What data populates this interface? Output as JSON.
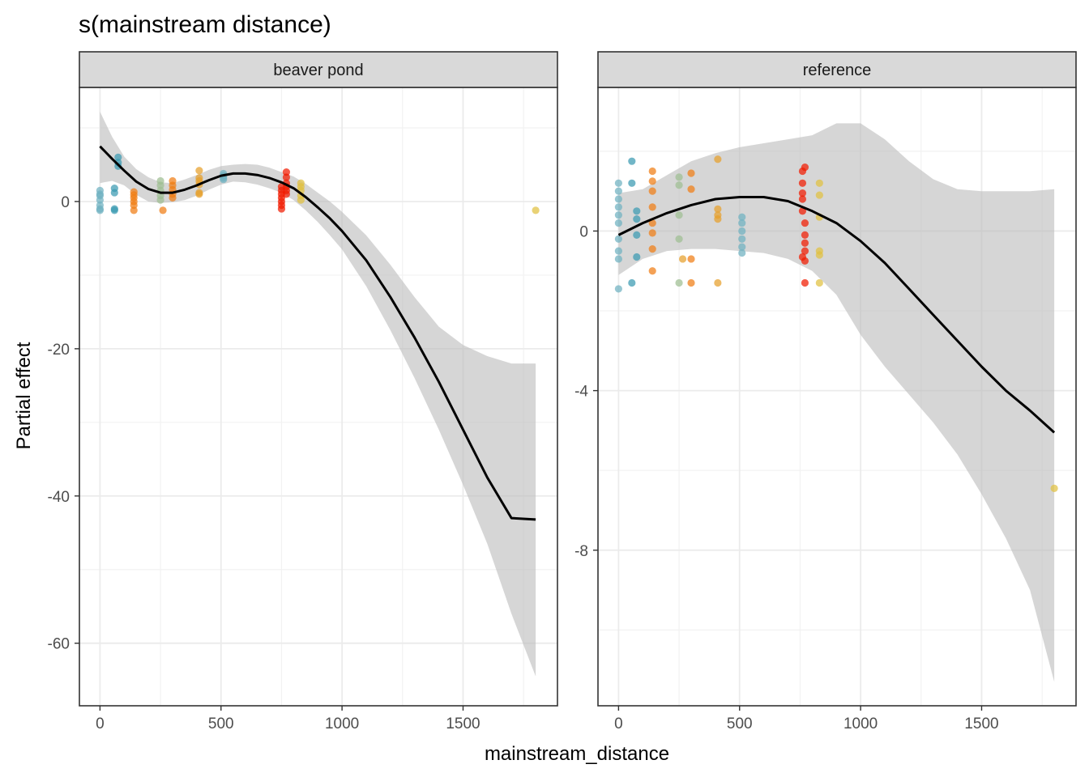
{
  "chart_data": {
    "type": "scatter",
    "title": "s(mainstream distance)",
    "xlabel": "mainstream_distance",
    "ylabel": "Partial effect",
    "grid": true,
    "palette": [
      "#6fb2c1",
      "#3a9ab2",
      "#9ebe91",
      "#e6a02b",
      "#f07d14",
      "#e0c040",
      "#f11b00"
    ],
    "panels": [
      {
        "strip": "beaver pond",
        "xlim": [
          -85,
          1890
        ],
        "ylim": [
          -68.5,
          15.5
        ],
        "xticks": [
          0,
          500,
          1000,
          1500
        ],
        "xtick_labels": [
          "0",
          "500",
          "1000",
          "1500"
        ],
        "yticks": [
          0,
          -20,
          -40,
          -60
        ],
        "ytick_labels": [
          "0",
          "-20",
          "-40",
          "-60"
        ],
        "curve": {
          "x": [
            0,
            50,
            100,
            150,
            200,
            250,
            300,
            350,
            400,
            450,
            500,
            550,
            600,
            650,
            700,
            750,
            800,
            850,
            900,
            950,
            1000,
            1100,
            1200,
            1300,
            1400,
            1500,
            1600,
            1700,
            1800
          ],
          "y": [
            7.5,
            5.8,
            4.2,
            2.7,
            1.7,
            1.2,
            1.2,
            1.6,
            2.2,
            2.9,
            3.5,
            3.8,
            3.8,
            3.6,
            3.2,
            2.6,
            1.8,
            0.6,
            -0.8,
            -2.3,
            -4.0,
            -8.0,
            -13.0,
            -18.5,
            -24.5,
            -31.0,
            -37.5,
            -43.0,
            -43.2
          ],
          "lower": [
            2.5,
            2.8,
            2.2,
            0.9,
            0.0,
            -0.2,
            -0.1,
            0.2,
            0.8,
            1.6,
            2.3,
            2.7,
            2.6,
            2.3,
            1.8,
            1.2,
            0.2,
            -1.2,
            -2.8,
            -4.6,
            -6.5,
            -11.5,
            -17.5,
            -24.0,
            -31.0,
            -38.5,
            -46.5,
            -56.0,
            -64.5
          ],
          "upper": [
            12.2,
            8.8,
            6.1,
            4.4,
            3.3,
            2.6,
            2.5,
            3.0,
            3.6,
            4.3,
            4.8,
            5.0,
            5.1,
            5.0,
            4.6,
            4.0,
            3.4,
            2.4,
            1.2,
            0.0,
            -1.4,
            -4.6,
            -8.6,
            -13.0,
            -17.0,
            -19.5,
            -21.0,
            -22.0,
            -22.0
          ]
        },
        "points": [
          {
            "x": 0,
            "ys": [
              1.5,
              0.8,
              0.2,
              -0.5,
              -1.0,
              1.0,
              -1.2
            ],
            "c": 0
          },
          {
            "x": 60,
            "ys": [
              1.8,
              1.2,
              -1.0,
              -1.2
            ],
            "c": 1
          },
          {
            "x": 75,
            "ys": [
              6.0,
              5.3,
              4.8
            ],
            "c": 1
          },
          {
            "x": 140,
            "ys": [
              1.3,
              0.9,
              0.5,
              0.0,
              -0.5,
              -1.2
            ],
            "c": 4
          },
          {
            "x": 250,
            "ys": [
              2.8,
              2.2,
              1.5,
              0.8,
              0.2
            ],
            "c": 2
          },
          {
            "x": 260,
            "ys": [
              -1.2
            ],
            "c": 4
          },
          {
            "x": 300,
            "ys": [
              2.8,
              2.2,
              1.6,
              1.0,
              0.5
            ],
            "c": 4
          },
          {
            "x": 410,
            "ys": [
              4.2,
              3.2,
              2.8,
              2.3,
              1.2,
              1.0
            ],
            "c": 3
          },
          {
            "x": 510,
            "ys": [
              3.8,
              3.5,
              3.2,
              3.0
            ],
            "c": 0
          },
          {
            "x": 750,
            "ys": [
              2.0,
              1.5,
              1.0,
              0.5,
              0.0,
              -0.5,
              -1.0
            ],
            "c": 6
          },
          {
            "x": 770,
            "ys": [
              4.0,
              3.3,
              2.5,
              2.0,
              1.5,
              1.0
            ],
            "c": 6
          },
          {
            "x": 830,
            "ys": [
              2.5,
              2.0,
              1.5,
              0.8,
              0.2
            ],
            "c": 5
          },
          {
            "x": 1800,
            "ys": [
              -1.2
            ],
            "c": 5
          }
        ]
      },
      {
        "strip": "reference",
        "xlim": [
          -85,
          1890
        ],
        "ylim": [
          -11.9,
          3.6
        ],
        "xticks": [
          0,
          500,
          1000,
          1500
        ],
        "xtick_labels": [
          "0",
          "500",
          "1000",
          "1500"
        ],
        "yticks": [
          0,
          -4,
          -8
        ],
        "ytick_labels": [
          "0",
          "-4",
          "-8"
        ],
        "curve": {
          "x": [
            0,
            100,
            200,
            300,
            400,
            500,
            600,
            700,
            800,
            900,
            1000,
            1100,
            1200,
            1300,
            1400,
            1500,
            1600,
            1700,
            1800
          ],
          "y": [
            -0.1,
            0.2,
            0.45,
            0.65,
            0.8,
            0.85,
            0.85,
            0.75,
            0.5,
            0.2,
            -0.25,
            -0.8,
            -1.45,
            -2.1,
            -2.75,
            -3.4,
            -4.0,
            -4.5,
            -5.05
          ],
          "lower": [
            -1.1,
            -0.7,
            -0.5,
            -0.45,
            -0.45,
            -0.5,
            -0.55,
            -0.7,
            -1.0,
            -1.6,
            -2.6,
            -3.4,
            -4.1,
            -4.8,
            -5.6,
            -6.6,
            -7.7,
            -9.0,
            -11.3
          ],
          "upper": [
            0.95,
            1.05,
            1.4,
            1.75,
            1.95,
            2.1,
            2.2,
            2.3,
            2.4,
            2.7,
            2.7,
            2.3,
            1.75,
            1.3,
            1.05,
            1.0,
            1.0,
            1.0,
            1.05
          ]
        },
        "points": [
          {
            "x": 0,
            "ys": [
              1.2,
              1.0,
              0.8,
              0.6,
              0.4,
              0.2,
              -0.2,
              -0.5,
              -0.7,
              -1.45
            ],
            "c": 0
          },
          {
            "x": 55,
            "ys": [
              1.75,
              1.2,
              -1.3
            ],
            "c": 1
          },
          {
            "x": 75,
            "ys": [
              0.5,
              0.3,
              -0.1,
              -0.65
            ],
            "c": 1
          },
          {
            "x": 140,
            "ys": [
              1.5,
              1.25,
              1.0,
              0.6,
              0.2,
              -0.05,
              -0.45,
              -1.0
            ],
            "c": 4
          },
          {
            "x": 250,
            "ys": [
              1.35,
              1.15,
              0.4,
              -0.2,
              -1.3
            ],
            "c": 2
          },
          {
            "x": 265,
            "ys": [
              -0.7
            ],
            "c": 3
          },
          {
            "x": 300,
            "ys": [
              1.45,
              1.05,
              -0.7,
              -1.3
            ],
            "c": 4
          },
          {
            "x": 410,
            "ys": [
              1.8,
              0.55,
              0.4,
              0.3,
              -1.3
            ],
            "c": 3
          },
          {
            "x": 510,
            "ys": [
              0.35,
              0.2,
              0.0,
              -0.2,
              -0.4,
              -0.55
            ],
            "c": 0
          },
          {
            "x": 760,
            "ys": [
              1.5,
              1.2,
              0.95,
              0.8,
              0.5,
              -0.65
            ],
            "c": 6
          },
          {
            "x": 770,
            "ys": [
              1.6,
              0.2,
              -0.1,
              -0.3,
              -0.5,
              -0.75,
              -1.3
            ],
            "c": 6
          },
          {
            "x": 830,
            "ys": [
              1.2,
              0.9,
              0.35,
              -0.5,
              -0.6,
              -1.3
            ],
            "c": 5
          },
          {
            "x": 1800,
            "ys": [
              -6.45
            ],
            "c": 5
          }
        ]
      }
    ]
  }
}
